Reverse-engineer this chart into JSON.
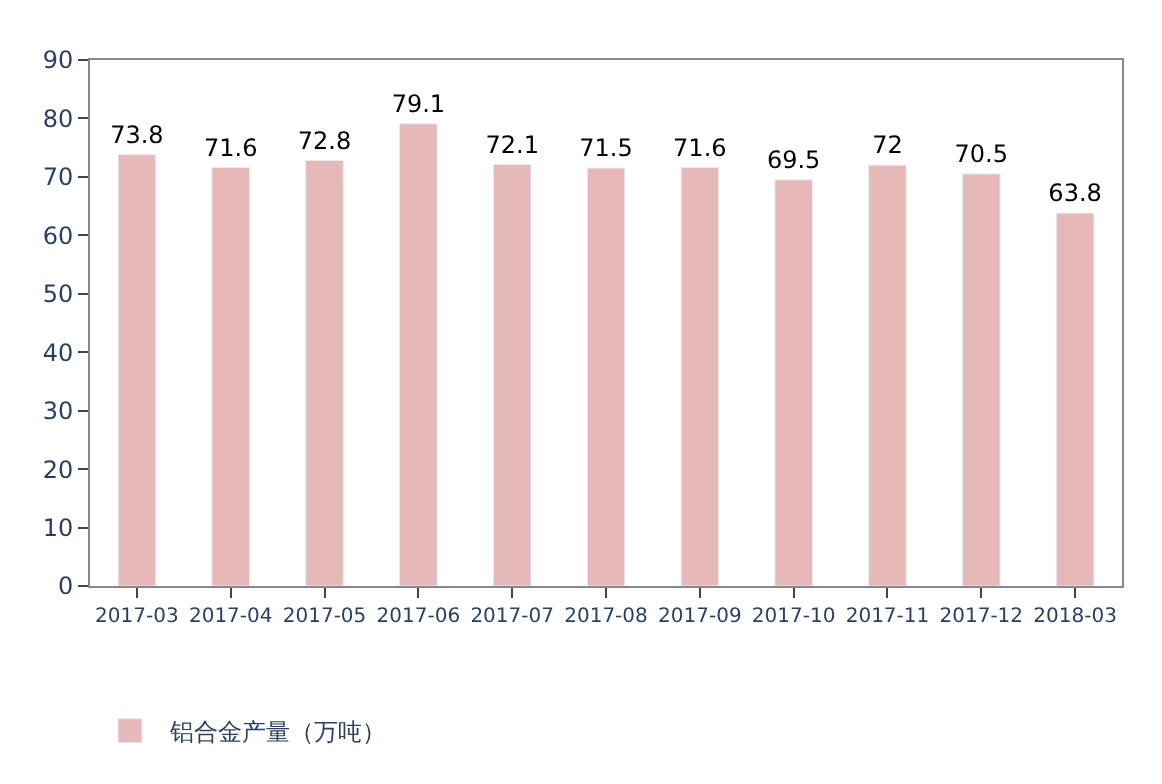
{
  "chart_data": {
    "type": "bar",
    "categories": [
      "2017-03",
      "2017-04",
      "2017-05",
      "2017-06",
      "2017-07",
      "2017-08",
      "2017-09",
      "2017-10",
      "2017-11",
      "2017-12",
      "2018-03"
    ],
    "series": [
      {
        "name": "铝合金产量（万吨）",
        "color": "#e6b8b7",
        "values": [
          73.8,
          71.6,
          72.8,
          79.1,
          72.1,
          71.5,
          71.6,
          69.5,
          72,
          70.5,
          63.8
        ]
      }
    ],
    "ylim": [
      0,
      90
    ],
    "yticks": [
      0,
      10,
      20,
      30,
      40,
      50,
      60,
      70,
      80,
      90
    ],
    "data_labels": true,
    "legend": "bottom left"
  }
}
